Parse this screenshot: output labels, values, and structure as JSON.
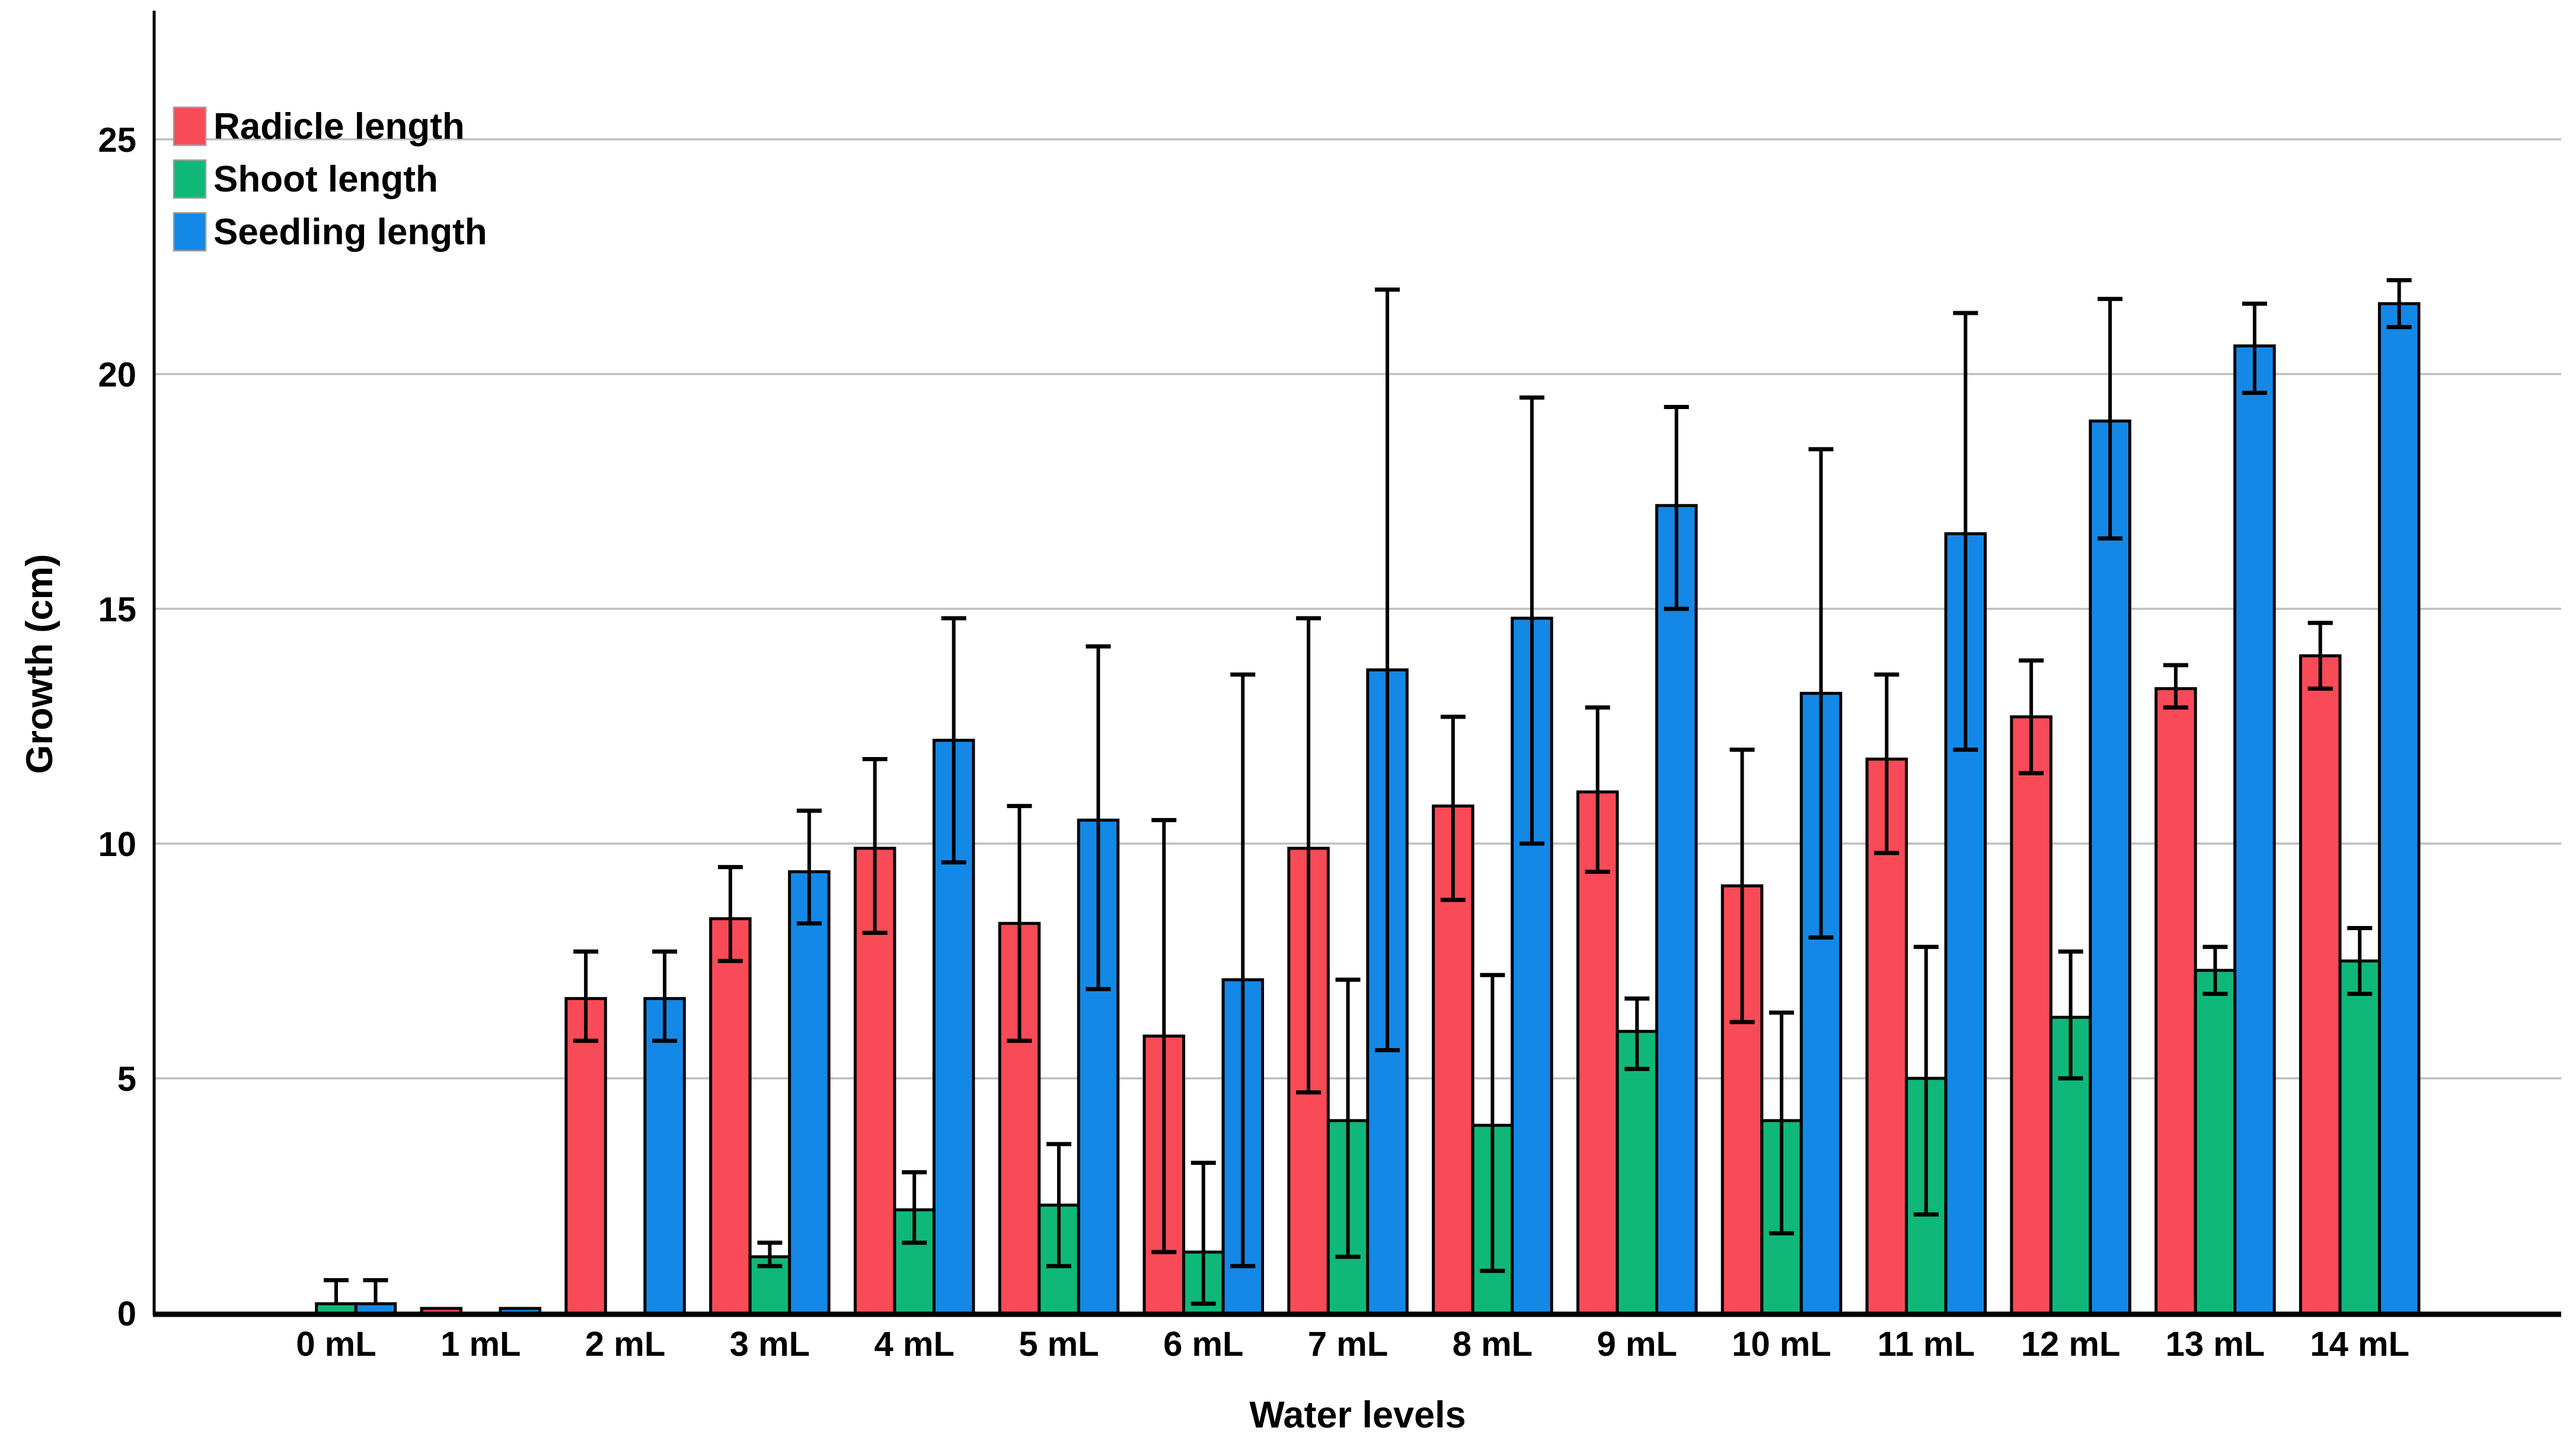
{
  "figure": {
    "background": "#ffffff",
    "plot": {
      "gridline_color": "#bfbfbf",
      "axis_color": "#000000",
      "bar_outline_color": "#000000",
      "error_bar_color": "#000000",
      "text_color": "#000000"
    }
  },
  "chart_data": {
    "type": "bar",
    "title": "",
    "xlabel": "Water levels",
    "ylabel": "Growth (cm)",
    "ylim": [
      0,
      27.6
    ],
    "yticks": [
      0,
      5,
      10,
      15,
      20,
      25
    ],
    "grid": true,
    "grid_axis": "y",
    "legend_position": "top-left-inside",
    "legend_entries": [
      "Radicle length",
      "Shoot length",
      "Seedling length"
    ],
    "categories": [
      "0 mL",
      "1 mL",
      "2 mL",
      "3 mL",
      "4 mL",
      "5 mL",
      "6 mL",
      "7 mL",
      "8 mL",
      "9 mL",
      "10 mL",
      "11 mL",
      "12 mL",
      "13 mL",
      "14 mL"
    ],
    "series": [
      {
        "name": "Radicle length",
        "color": "#F94A57",
        "values": [
          0,
          0.1,
          6.7,
          8.4,
          9.9,
          8.3,
          5.9,
          9.9,
          10.8,
          11.1,
          9.1,
          11.8,
          12.7,
          13.3,
          14.0
        ],
        "err_low": [
          null,
          null,
          5.8,
          7.5,
          8.1,
          5.8,
          1.3,
          4.7,
          8.8,
          9.4,
          6.2,
          9.8,
          11.5,
          12.9,
          13.3
        ],
        "err_high": [
          null,
          null,
          7.7,
          9.5,
          11.8,
          10.8,
          10.5,
          14.8,
          12.7,
          12.9,
          12.0,
          13.6,
          13.9,
          13.8,
          14.7
        ]
      },
      {
        "name": "Shoot length",
        "color": "#0FB878",
        "values": [
          0.2,
          0,
          0,
          1.2,
          2.2,
          2.3,
          1.3,
          4.1,
          4.0,
          6.0,
          4.1,
          5.0,
          6.3,
          7.3,
          7.5
        ],
        "err_low": [
          null,
          null,
          null,
          1.0,
          1.5,
          1.0,
          0.2,
          1.2,
          0.9,
          5.2,
          1.7,
          2.1,
          5.0,
          6.8,
          6.8
        ],
        "err_high": [
          0.7,
          null,
          null,
          1.5,
          3.0,
          3.6,
          3.2,
          7.1,
          7.2,
          6.7,
          6.4,
          7.8,
          7.7,
          7.8,
          8.2
        ]
      },
      {
        "name": "Seedling length",
        "color": "#1488E6",
        "values": [
          0.2,
          0.1,
          6.7,
          9.4,
          12.2,
          10.5,
          7.1,
          13.7,
          14.8,
          17.2,
          13.2,
          16.6,
          19.0,
          20.6,
          21.5
        ],
        "err_low": [
          null,
          null,
          5.8,
          8.3,
          9.6,
          6.9,
          1.0,
          5.6,
          10.0,
          15.0,
          8.0,
          12.0,
          16.5,
          19.6,
          21.0
        ],
        "err_high": [
          0.7,
          null,
          7.7,
          10.7,
          14.8,
          14.2,
          13.6,
          21.8,
          19.5,
          19.3,
          18.4,
          21.3,
          21.6,
          21.5,
          22.0
        ]
      }
    ]
  }
}
